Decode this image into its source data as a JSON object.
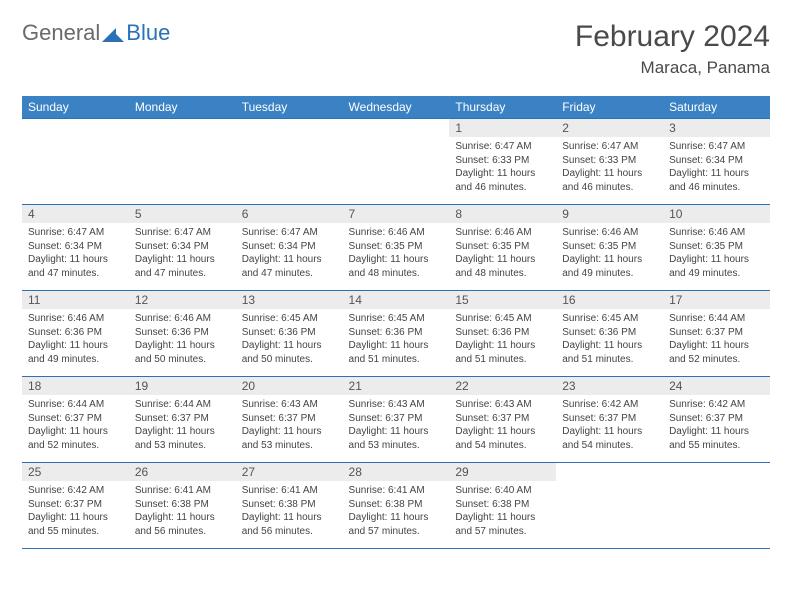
{
  "brand": {
    "general": "General",
    "blue": "Blue"
  },
  "title": "February 2024",
  "location": "Maraca, Panama",
  "colors": {
    "header_bg": "#3b82c4",
    "header_border": "#2a71b8",
    "daynum_bg": "#ececec",
    "text": "#333333"
  },
  "dayHeaders": [
    "Sunday",
    "Monday",
    "Tuesday",
    "Wednesday",
    "Thursday",
    "Friday",
    "Saturday"
  ],
  "weeks": [
    [
      {
        "n": "",
        "sr": "",
        "ss": "",
        "dl": ""
      },
      {
        "n": "",
        "sr": "",
        "ss": "",
        "dl": ""
      },
      {
        "n": "",
        "sr": "",
        "ss": "",
        "dl": ""
      },
      {
        "n": "",
        "sr": "",
        "ss": "",
        "dl": ""
      },
      {
        "n": "1",
        "sr": "Sunrise: 6:47 AM",
        "ss": "Sunset: 6:33 PM",
        "dl": "Daylight: 11 hours and 46 minutes."
      },
      {
        "n": "2",
        "sr": "Sunrise: 6:47 AM",
        "ss": "Sunset: 6:33 PM",
        "dl": "Daylight: 11 hours and 46 minutes."
      },
      {
        "n": "3",
        "sr": "Sunrise: 6:47 AM",
        "ss": "Sunset: 6:34 PM",
        "dl": "Daylight: 11 hours and 46 minutes."
      }
    ],
    [
      {
        "n": "4",
        "sr": "Sunrise: 6:47 AM",
        "ss": "Sunset: 6:34 PM",
        "dl": "Daylight: 11 hours and 47 minutes."
      },
      {
        "n": "5",
        "sr": "Sunrise: 6:47 AM",
        "ss": "Sunset: 6:34 PM",
        "dl": "Daylight: 11 hours and 47 minutes."
      },
      {
        "n": "6",
        "sr": "Sunrise: 6:47 AM",
        "ss": "Sunset: 6:34 PM",
        "dl": "Daylight: 11 hours and 47 minutes."
      },
      {
        "n": "7",
        "sr": "Sunrise: 6:46 AM",
        "ss": "Sunset: 6:35 PM",
        "dl": "Daylight: 11 hours and 48 minutes."
      },
      {
        "n": "8",
        "sr": "Sunrise: 6:46 AM",
        "ss": "Sunset: 6:35 PM",
        "dl": "Daylight: 11 hours and 48 minutes."
      },
      {
        "n": "9",
        "sr": "Sunrise: 6:46 AM",
        "ss": "Sunset: 6:35 PM",
        "dl": "Daylight: 11 hours and 49 minutes."
      },
      {
        "n": "10",
        "sr": "Sunrise: 6:46 AM",
        "ss": "Sunset: 6:35 PM",
        "dl": "Daylight: 11 hours and 49 minutes."
      }
    ],
    [
      {
        "n": "11",
        "sr": "Sunrise: 6:46 AM",
        "ss": "Sunset: 6:36 PM",
        "dl": "Daylight: 11 hours and 49 minutes."
      },
      {
        "n": "12",
        "sr": "Sunrise: 6:46 AM",
        "ss": "Sunset: 6:36 PM",
        "dl": "Daylight: 11 hours and 50 minutes."
      },
      {
        "n": "13",
        "sr": "Sunrise: 6:45 AM",
        "ss": "Sunset: 6:36 PM",
        "dl": "Daylight: 11 hours and 50 minutes."
      },
      {
        "n": "14",
        "sr": "Sunrise: 6:45 AM",
        "ss": "Sunset: 6:36 PM",
        "dl": "Daylight: 11 hours and 51 minutes."
      },
      {
        "n": "15",
        "sr": "Sunrise: 6:45 AM",
        "ss": "Sunset: 6:36 PM",
        "dl": "Daylight: 11 hours and 51 minutes."
      },
      {
        "n": "16",
        "sr": "Sunrise: 6:45 AM",
        "ss": "Sunset: 6:36 PM",
        "dl": "Daylight: 11 hours and 51 minutes."
      },
      {
        "n": "17",
        "sr": "Sunrise: 6:44 AM",
        "ss": "Sunset: 6:37 PM",
        "dl": "Daylight: 11 hours and 52 minutes."
      }
    ],
    [
      {
        "n": "18",
        "sr": "Sunrise: 6:44 AM",
        "ss": "Sunset: 6:37 PM",
        "dl": "Daylight: 11 hours and 52 minutes."
      },
      {
        "n": "19",
        "sr": "Sunrise: 6:44 AM",
        "ss": "Sunset: 6:37 PM",
        "dl": "Daylight: 11 hours and 53 minutes."
      },
      {
        "n": "20",
        "sr": "Sunrise: 6:43 AM",
        "ss": "Sunset: 6:37 PM",
        "dl": "Daylight: 11 hours and 53 minutes."
      },
      {
        "n": "21",
        "sr": "Sunrise: 6:43 AM",
        "ss": "Sunset: 6:37 PM",
        "dl": "Daylight: 11 hours and 53 minutes."
      },
      {
        "n": "22",
        "sr": "Sunrise: 6:43 AM",
        "ss": "Sunset: 6:37 PM",
        "dl": "Daylight: 11 hours and 54 minutes."
      },
      {
        "n": "23",
        "sr": "Sunrise: 6:42 AM",
        "ss": "Sunset: 6:37 PM",
        "dl": "Daylight: 11 hours and 54 minutes."
      },
      {
        "n": "24",
        "sr": "Sunrise: 6:42 AM",
        "ss": "Sunset: 6:37 PM",
        "dl": "Daylight: 11 hours and 55 minutes."
      }
    ],
    [
      {
        "n": "25",
        "sr": "Sunrise: 6:42 AM",
        "ss": "Sunset: 6:37 PM",
        "dl": "Daylight: 11 hours and 55 minutes."
      },
      {
        "n": "26",
        "sr": "Sunrise: 6:41 AM",
        "ss": "Sunset: 6:38 PM",
        "dl": "Daylight: 11 hours and 56 minutes."
      },
      {
        "n": "27",
        "sr": "Sunrise: 6:41 AM",
        "ss": "Sunset: 6:38 PM",
        "dl": "Daylight: 11 hours and 56 minutes."
      },
      {
        "n": "28",
        "sr": "Sunrise: 6:41 AM",
        "ss": "Sunset: 6:38 PM",
        "dl": "Daylight: 11 hours and 57 minutes."
      },
      {
        "n": "29",
        "sr": "Sunrise: 6:40 AM",
        "ss": "Sunset: 6:38 PM",
        "dl": "Daylight: 11 hours and 57 minutes."
      },
      {
        "n": "",
        "sr": "",
        "ss": "",
        "dl": ""
      },
      {
        "n": "",
        "sr": "",
        "ss": "",
        "dl": ""
      }
    ]
  ]
}
